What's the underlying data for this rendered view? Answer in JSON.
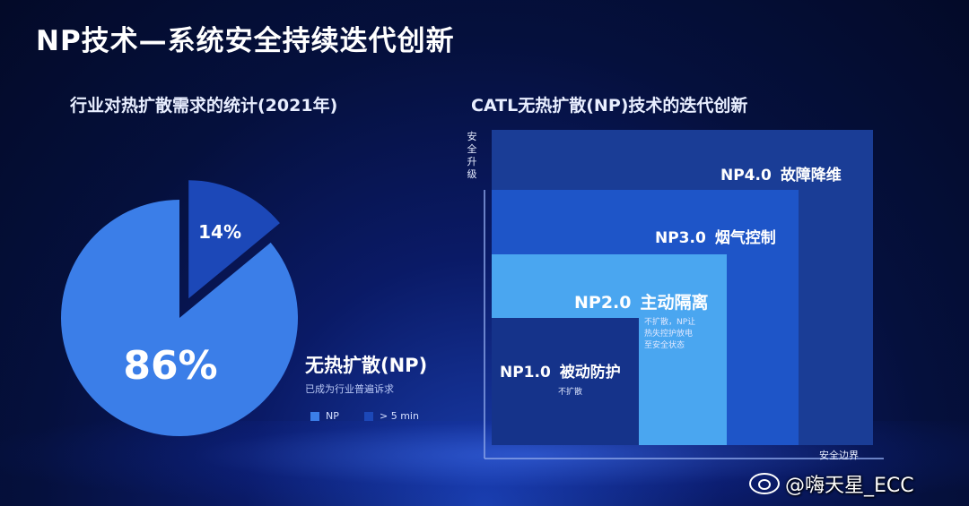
{
  "title": "NP技术—系统安全持续迭代创新",
  "left": {
    "subtitle": "行业对热扩散需求的统计(2021年)",
    "np_heading": "无热扩散(NP)",
    "np_desc": "已成为行业普遍诉求"
  },
  "right": {
    "subtitle": "CATL无热扩散(NP)技术的迭代创新",
    "y_axis_label": "安全升级",
    "x_axis_label": "安全边界",
    "levels": [
      {
        "code": "NP1.0",
        "name": "被动防护",
        "desc": "不扩散"
      },
      {
        "code": "NP2.0",
        "name": "主动隔离",
        "desc": "不扩散，NP让\n热失控护放电\n至安全状态"
      },
      {
        "code": "NP3.0",
        "name": "烟气控制",
        "desc": ""
      },
      {
        "code": "NP4.0",
        "name": "故障降维",
        "desc": ""
      }
    ]
  },
  "chart_data": [
    {
      "type": "pie",
      "title": "行业对热扩散需求的统计(2021年)",
      "slices": [
        {
          "label": "NP",
          "value": 86,
          "display": "86%",
          "color": "#3b7ee8"
        },
        {
          "label": "> 5 min",
          "value": 14,
          "display": "14%",
          "color": "#1c48b8"
        }
      ],
      "legend": [
        "NP",
        "> 5 min"
      ],
      "legend_position": "bottom-right"
    }
  ],
  "colors": {
    "np_slice": "#3b7ee8",
    "min5_slice": "#1c48b8",
    "np4_block": "#1a3d96",
    "np3_block": "#1e55c8",
    "np2_block": "#4aa6f0",
    "np1_block": "#15338a"
  },
  "watermark": "@嗨天星_ECC"
}
